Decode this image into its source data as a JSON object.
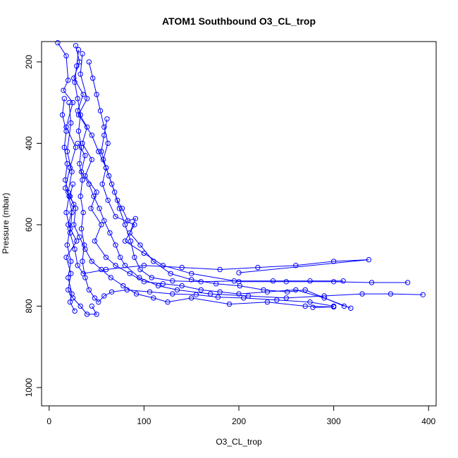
{
  "chart_data": {
    "type": "scatter",
    "title": "ATOM1 Southbound O3_CL_trop",
    "xlabel": "O3_CL_trop",
    "ylabel": "Pressure (mbar)",
    "xlim": [
      -8,
      408
    ],
    "ylim": [
      1045,
      150
    ],
    "y_reversed": true,
    "x_ticks": [
      0,
      100,
      200,
      300,
      400
    ],
    "y_ticks": [
      200,
      400,
      600,
      800,
      1000
    ],
    "grid": false,
    "legend": "none",
    "color": "#0000ff",
    "marker": "open-circle",
    "series": [
      {
        "points": [
          [
            9,
            153
          ],
          [
            18,
            185
          ],
          [
            20,
            245
          ],
          [
            15,
            270
          ],
          [
            25,
            300
          ],
          [
            18,
            360
          ],
          [
            28,
            410
          ],
          [
            22,
            460
          ],
          [
            17,
            510
          ],
          [
            26,
            550
          ],
          [
            20,
            600
          ],
          [
            29,
            640
          ],
          [
            18,
            680
          ],
          [
            23,
            720
          ],
          [
            20,
            760
          ],
          [
            25,
            780
          ],
          [
            33,
            800
          ],
          [
            40,
            820
          ],
          [
            50,
            820
          ],
          [
            45,
            800
          ]
        ]
      },
      {
        "points": [
          [
            28,
            160
          ],
          [
            32,
            200
          ],
          [
            26,
            240
          ],
          [
            36,
            280
          ],
          [
            30,
            320
          ],
          [
            40,
            360
          ],
          [
            35,
            400
          ],
          [
            45,
            440
          ],
          [
            38,
            480
          ],
          [
            50,
            520
          ],
          [
            44,
            560
          ],
          [
            55,
            600
          ],
          [
            48,
            640
          ],
          [
            60,
            680
          ],
          [
            70,
            700
          ],
          [
            85,
            720
          ],
          [
            100,
            740
          ],
          [
            120,
            745
          ],
          [
            140,
            750
          ],
          [
            160,
            760
          ],
          [
            180,
            765
          ],
          [
            200,
            770
          ],
          [
            230,
            765
          ],
          [
            260,
            760
          ],
          [
            290,
            780
          ],
          [
            318,
            805
          ]
        ]
      },
      {
        "points": [
          [
            35,
            180
          ],
          [
            33,
            230
          ],
          [
            40,
            290
          ],
          [
            31,
            330
          ],
          [
            45,
            380
          ],
          [
            52,
            420
          ],
          [
            60,
            460
          ],
          [
            56,
            500
          ],
          [
            62,
            540
          ],
          [
            70,
            580
          ],
          [
            90,
            600
          ],
          [
            80,
            640
          ],
          [
            100,
            670
          ],
          [
            120,
            700
          ],
          [
            150,
            720
          ],
          [
            200,
            740
          ],
          [
            250,
            740
          ],
          [
            300,
            740
          ],
          [
            340,
            742
          ],
          [
            378,
            742
          ]
        ]
      },
      {
        "points": [
          [
            21,
            300
          ],
          [
            23,
            350
          ],
          [
            19,
            420
          ],
          [
            24,
            470
          ],
          [
            20,
            520
          ],
          [
            24,
            570
          ],
          [
            22,
            620
          ],
          [
            27,
            660
          ],
          [
            30,
            700
          ],
          [
            36,
            720
          ],
          [
            60,
            710
          ],
          [
            100,
            700
          ],
          [
            140,
            705
          ],
          [
            180,
            710
          ],
          [
            220,
            705
          ],
          [
            260,
            700
          ],
          [
            300,
            690
          ],
          [
            337,
            686
          ],
          [
            200,
            718
          ]
        ]
      },
      {
        "points": [
          [
            30,
            400
          ],
          [
            38,
            430
          ],
          [
            34,
            470
          ],
          [
            42,
            500
          ],
          [
            47,
            530
          ],
          [
            53,
            560
          ],
          [
            58,
            590
          ],
          [
            64,
            620
          ],
          [
            70,
            650
          ],
          [
            75,
            680
          ],
          [
            80,
            700
          ],
          [
            95,
            730
          ],
          [
            115,
            750
          ],
          [
            135,
            760
          ],
          [
            170,
            770
          ],
          [
            210,
            775
          ],
          [
            250,
            780
          ],
          [
            290,
            775
          ],
          [
            330,
            770
          ],
          [
            360,
            770
          ],
          [
            394,
            772
          ]
        ]
      },
      {
        "points": [
          [
            25,
            500
          ],
          [
            22,
            530
          ],
          [
            28,
            560
          ],
          [
            26,
            600
          ],
          [
            32,
            630
          ],
          [
            38,
            660
          ],
          [
            45,
            690
          ],
          [
            55,
            710
          ],
          [
            65,
            730
          ],
          [
            78,
            750
          ],
          [
            92,
            770
          ],
          [
            110,
            780
          ],
          [
            125,
            790
          ],
          [
            150,
            780
          ],
          [
            190,
            795
          ],
          [
            230,
            790
          ],
          [
            270,
            800
          ],
          [
            300,
            802
          ],
          [
            278,
            803
          ]
        ]
      },
      {
        "points": [
          [
            42,
            200
          ],
          [
            46,
            240
          ],
          [
            50,
            280
          ],
          [
            54,
            320
          ],
          [
            58,
            360
          ],
          [
            62,
            400
          ],
          [
            57,
            440
          ],
          [
            63,
            480
          ],
          [
            69,
            520
          ],
          [
            74,
            560
          ],
          [
            80,
            600
          ],
          [
            86,
            640
          ],
          [
            90,
            680
          ],
          [
            96,
            710
          ],
          [
            108,
            730
          ],
          [
            130,
            738
          ],
          [
            160,
            740
          ],
          [
            195,
            738
          ],
          [
            236,
            738
          ],
          [
            275,
            738
          ],
          [
            310,
            738
          ]
        ]
      },
      {
        "points": [
          [
            31,
            170
          ],
          [
            29,
            210
          ],
          [
            27,
            250
          ],
          [
            30,
            290
          ],
          [
            33,
            330
          ],
          [
            31,
            370
          ],
          [
            34,
            410
          ],
          [
            32,
            450
          ],
          [
            35,
            490
          ],
          [
            33,
            530
          ],
          [
            36,
            570
          ],
          [
            34,
            610
          ],
          [
            37,
            650
          ],
          [
            35,
            690
          ],
          [
            38,
            730
          ],
          [
            42,
            760
          ],
          [
            48,
            780
          ],
          [
            52,
            790
          ],
          [
            58,
            775
          ],
          [
            66,
            765
          ],
          [
            82,
            760
          ],
          [
            106,
            765
          ],
          [
            130,
            770
          ],
          [
            155,
            772
          ],
          [
            178,
            778
          ],
          [
            205,
            780
          ],
          [
            240,
            785
          ],
          [
            275,
            790
          ],
          [
            300,
            800
          ]
        ]
      },
      {
        "points": [
          [
            16,
            290
          ],
          [
            14,
            330
          ],
          [
            18,
            370
          ],
          [
            16,
            410
          ],
          [
            19,
            450
          ],
          [
            17,
            490
          ],
          [
            21,
            530
          ],
          [
            18,
            570
          ],
          [
            22,
            610
          ],
          [
            19,
            650
          ],
          [
            23,
            690
          ],
          [
            20,
            730
          ],
          [
            24,
            770
          ],
          [
            22,
            790
          ],
          [
            27,
            812
          ]
        ]
      },
      {
        "points": [
          [
            61,
            340
          ],
          [
            58,
            380
          ],
          [
            55,
            420
          ],
          [
            60,
            460
          ],
          [
            66,
            500
          ],
          [
            72,
            540
          ],
          [
            77,
            560
          ],
          [
            83,
            590
          ],
          [
            91,
            585
          ],
          [
            85,
            620
          ],
          [
            96,
            650
          ],
          [
            110,
            690
          ],
          [
            128,
            720
          ],
          [
            150,
            735
          ],
          [
            176,
            745
          ],
          [
            201,
            750
          ],
          [
            226,
            760
          ],
          [
            251,
            765
          ],
          [
            270,
            760
          ],
          [
            311,
            800
          ]
        ]
      }
    ]
  }
}
